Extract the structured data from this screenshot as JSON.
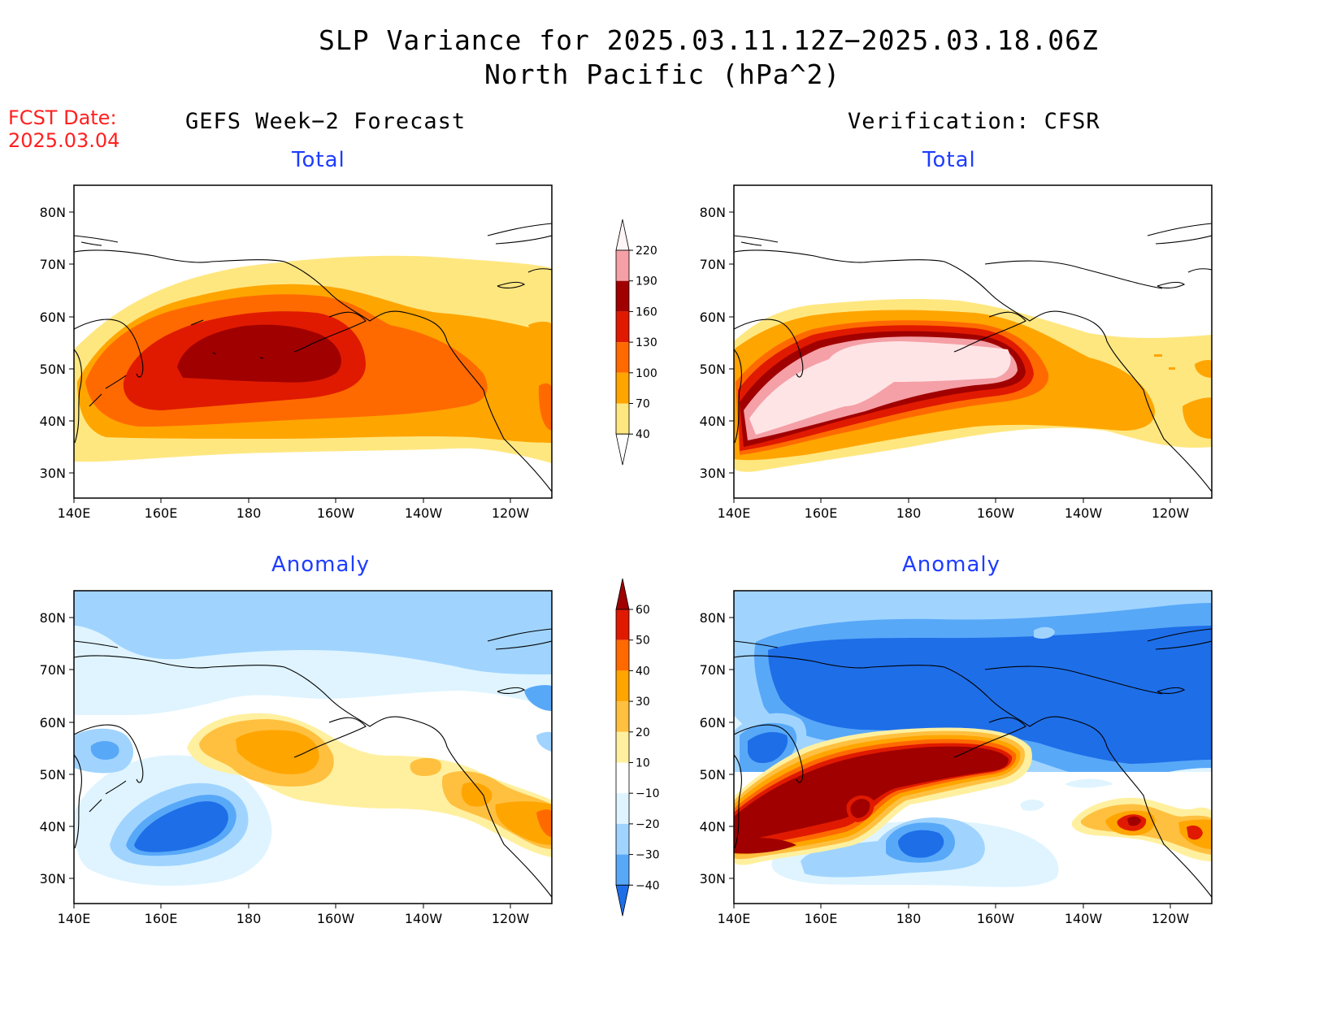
{
  "title": {
    "line1": "SLP Variance for 2025.03.11.12Z−2025.03.18.06Z",
    "line2": "North Pacific (hPa^2)"
  },
  "fcst_date": {
    "label": "FCST Date:",
    "value": "2025.03.04"
  },
  "columns": {
    "left": "GEFS Week−2 Forecast",
    "right": "Verification: CFSR"
  },
  "panels": {
    "top_left": "Total",
    "top_right": "Total",
    "bottom_left": "Anomaly",
    "bottom_right": "Anomaly"
  },
  "axes": {
    "lat_labels": [
      "80N",
      "70N",
      "60N",
      "50N",
      "40N",
      "30N"
    ],
    "lon_labels": [
      "140E",
      "160E",
      "180",
      "160W",
      "140W",
      "120W"
    ]
  },
  "colorbars": {
    "total": {
      "labels": [
        "220",
        "190",
        "160",
        "130",
        "100",
        "70",
        "40"
      ],
      "colors": [
        "#ffe4e6",
        "#f4a0a6",
        "#a00000",
        "#e01a00",
        "#ff6a00",
        "#ffa500",
        "#ffe780"
      ]
    },
    "anomaly": {
      "labels": [
        "60",
        "50",
        "40",
        "30",
        "20",
        "10",
        "−10",
        "−20",
        "−30",
        "−40"
      ],
      "colors": [
        "#a00000",
        "#e01a00",
        "#ff6a00",
        "#ffa500",
        "#ffc040",
        "#fff0a0",
        "#ffffff",
        "#dff4ff",
        "#a0d4ff",
        "#58a8f8",
        "#1e6ee8"
      ]
    }
  },
  "palette": {
    "title_blue": "#1e3cff",
    "fcst_red": "#ff2020"
  }
}
